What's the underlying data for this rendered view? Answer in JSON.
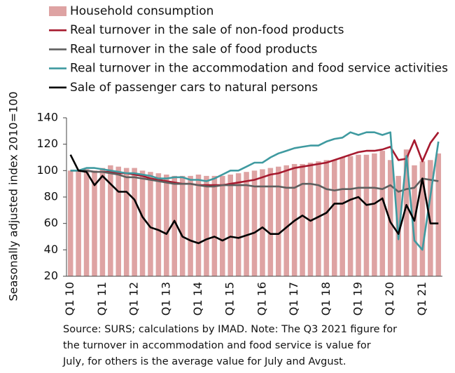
{
  "chart_data": {
    "type": "bar",
    "y_label": "Seasonally adjusted index 2010=100",
    "categories": [
      "Q1 10",
      null,
      null,
      null,
      "Q1 11",
      null,
      null,
      null,
      "Q1 12",
      null,
      null,
      null,
      "Q1 13",
      null,
      null,
      null,
      "Q1 14",
      null,
      null,
      null,
      "Q1 15",
      null,
      null,
      null,
      "Q1 16",
      null,
      null,
      null,
      "Q1 17",
      null,
      null,
      null,
      "Q1 18",
      null,
      null,
      null,
      "Q1 19",
      null,
      null,
      null,
      "Q1 20",
      null,
      null,
      null,
      "Q1 21",
      null,
      null
    ],
    "series": [
      {
        "name": "Household consumption",
        "type": "bar",
        "color": "#dea3a3",
        "values": [
          100,
          100,
          101,
          100,
          102,
          104,
          103,
          102,
          102,
          100,
          99,
          98,
          97,
          96,
          96,
          96,
          97,
          96,
          96,
          96,
          97,
          98,
          99,
          100,
          101,
          102,
          103,
          104,
          105,
          105,
          106,
          107,
          108,
          108,
          110,
          111,
          112,
          112,
          113,
          115,
          108,
          96,
          116,
          104,
          107,
          108,
          113
        ]
      },
      {
        "name": "Real turnover in the sale of non-food products",
        "type": "line",
        "color": "#a6192e",
        "values": [
          100,
          100,
          100,
          99,
          99,
          99,
          98,
          98,
          97,
          96,
          94,
          93,
          92,
          91,
          90,
          90,
          89,
          89,
          89,
          89,
          90,
          91,
          92,
          93,
          95,
          97,
          98,
          100,
          102,
          103,
          104,
          105,
          106,
          108,
          110,
          112,
          114,
          115,
          115,
          116,
          118,
          108,
          109,
          123,
          107,
          121,
          129
        ]
      },
      {
        "name": "Real turnover in the sale of food products",
        "type": "line",
        "color": "#5f5f5f",
        "values": [
          100,
          100,
          100,
          99,
          99,
          98,
          97,
          95,
          95,
          94,
          93,
          92,
          91,
          90,
          90,
          90,
          89,
          88,
          88,
          89,
          89,
          89,
          89,
          88,
          88,
          88,
          88,
          87,
          87,
          90,
          90,
          89,
          86,
          85,
          86,
          86,
          87,
          87,
          87,
          86,
          89,
          84,
          86,
          87,
          94,
          93,
          92
        ]
      },
      {
        "name": "Real turnover in the accommodation and food service activities",
        "type": "line",
        "color": "#3f9aa0",
        "values": [
          100,
          100,
          102,
          102,
          101,
          100,
          99,
          98,
          98,
          97,
          96,
          94,
          94,
          95,
          95,
          93,
          93,
          92,
          94,
          97,
          100,
          100,
          103,
          106,
          106,
          110,
          113,
          115,
          117,
          118,
          119,
          119,
          122,
          124,
          125,
          129,
          127,
          129,
          129,
          127,
          129,
          48,
          111,
          47,
          40,
          81,
          122
        ]
      },
      {
        "name": "Sale of passenger cars to natural persons",
        "type": "line",
        "color": "#000000",
        "values": [
          112,
          100,
          99,
          89,
          96,
          90,
          84,
          84,
          78,
          65,
          57,
          55,
          52,
          62,
          50,
          47,
          45,
          48,
          50,
          47,
          50,
          49,
          51,
          53,
          57,
          52,
          52,
          57,
          62,
          66,
          62,
          65,
          68,
          75,
          75,
          78,
          80,
          74,
          75,
          79,
          61,
          52,
          74,
          62,
          94,
          60,
          60
        ]
      }
    ],
    "ylim": [
      20,
      140
    ],
    "yticks": [
      20,
      40,
      60,
      80,
      100,
      120,
      140
    ],
    "note": [
      "Source: SURS; calculations by IMAD. Note: The Q3 2021 figure for",
      "the turnover in accommodation and food service is value for",
      "July, for others is the average value for July and Avgust."
    ]
  }
}
